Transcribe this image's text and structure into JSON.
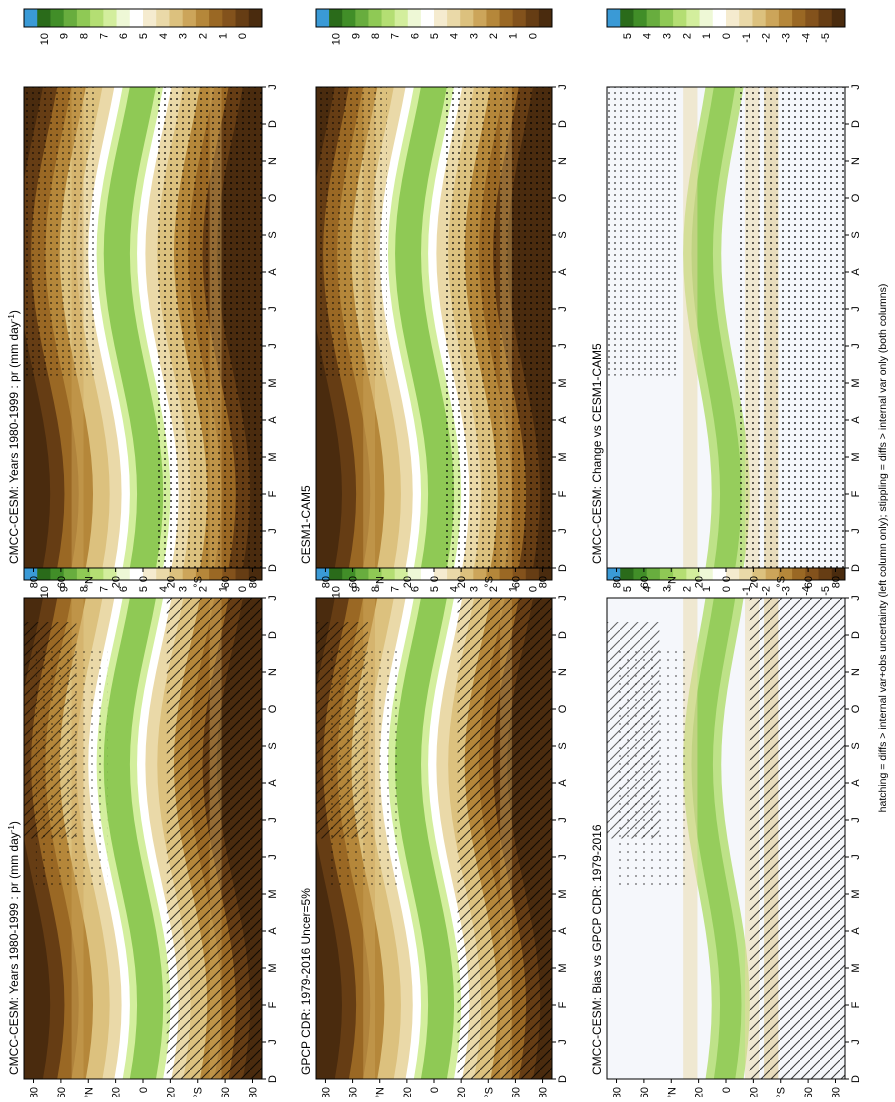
{
  "footnote": "hatching = diffs > internal var+obs uncertainty (left column only); stippling = diffs > internal var only (both columns)",
  "common": {
    "months": [
      "D",
      "J",
      "F",
      "M",
      "A",
      "M",
      "J",
      "J",
      "A",
      "S",
      "O",
      "N",
      "D",
      "J"
    ],
    "lat_ticks": [
      "80",
      "60",
      "°N",
      "20",
      "0",
      "20",
      "°S",
      "60",
      "80"
    ]
  },
  "palettes": {
    "abs": [
      "#f7f7f7",
      "#4a2b0e",
      "#663d14",
      "#83521c",
      "#9a6824",
      "#b5873a",
      "#cca55a",
      "#dcc17e",
      "#ead9a8",
      "#f5ebcf",
      "#ffffff",
      "#eef8d6",
      "#d3ee9d",
      "#b4de73",
      "#8fc955",
      "#68ad3e",
      "#418e28",
      "#2a6b1a",
      "#3a9ad6"
    ],
    "diff": [
      "#f7f7f7",
      "#4a2b0e",
      "#663d14",
      "#83521c",
      "#9a6824",
      "#b5873a",
      "#cca55a",
      "#dcc17e",
      "#ead9a8",
      "#f5ebcf",
      "#ffffff",
      "#eef8d6",
      "#d3ee9d",
      "#b4de73",
      "#8fc955",
      "#68ad3e",
      "#418e28",
      "#2a6b1a",
      "#3a9ad6"
    ]
  },
  "panels": [
    {
      "id": "tl",
      "title": "CMCC-CESM: Years 1980-1999 : pr (mm day",
      "title_sup": "-1",
      "title_end": ")",
      "kind": "abs",
      "hatch": true,
      "stipple": "sparse",
      "cb_labels": [
        "10",
        "9",
        "8",
        "7",
        "6",
        "5",
        "4",
        "3",
        "2",
        "1",
        "0"
      ]
    },
    {
      "id": "tr",
      "title": "CMCC-CESM: Years 1980-1999 : pr (mm day",
      "title_sup": "-1",
      "title_end": ")",
      "kind": "abs",
      "hatch": false,
      "stipple": "dense",
      "cb_labels": [
        "10",
        "9",
        "8",
        "7",
        "6",
        "5",
        "4",
        "3",
        "2",
        "1",
        "0"
      ]
    },
    {
      "id": "ml",
      "title": "GPCP CDR: 1979-2016 Uncer=5%",
      "title_sup": "",
      "title_end": "",
      "kind": "abs",
      "hatch": true,
      "stipple": "sparse",
      "cb_labels": [
        "10",
        "9",
        "8",
        "7",
        "6",
        "5",
        "4",
        "3",
        "2",
        "1",
        "0"
      ]
    },
    {
      "id": "mr",
      "title": "CESM1-CAM5",
      "title_sup": "",
      "title_end": "",
      "kind": "abs",
      "hatch": false,
      "stipple": "dense",
      "cb_labels": [
        "10",
        "9",
        "8",
        "7",
        "6",
        "5",
        "4",
        "3",
        "2",
        "1",
        "0"
      ]
    },
    {
      "id": "bl",
      "title": "CMCC-CESM: Bias vs GPCP CDR: 1979-2016",
      "title_sup": "",
      "title_end": "",
      "kind": "diff",
      "hatch": true,
      "stipple": "sparse",
      "cb_labels": [
        "5",
        "4",
        "3",
        "2",
        "1",
        "0",
        "-1",
        "-2",
        "-3",
        "-4",
        "-5"
      ]
    },
    {
      "id": "br",
      "title": "CMCC-CESM: Change vs CESM1-CAM5",
      "title_sup": "",
      "title_end": "",
      "kind": "diff",
      "hatch": false,
      "stipple": "dense",
      "cb_labels": [
        "5",
        "4",
        "3",
        "2",
        "1",
        "0",
        "-1",
        "-2",
        "-3",
        "-4",
        "-5"
      ]
    }
  ],
  "chart_data": {
    "type": "heatmap",
    "x_axis": {
      "label": "",
      "ticks": [
        "D",
        "J",
        "F",
        "M",
        "A",
        "M",
        "J",
        "J",
        "A",
        "S",
        "O",
        "N",
        "D",
        "J"
      ]
    },
    "y_axis": {
      "label": "",
      "ticks": [
        "80",
        "60",
        "°N",
        "20",
        "0",
        "20",
        "°S",
        "60",
        "80"
      ],
      "range": [
        -90,
        90
      ]
    },
    "series": [
      {
        "name": "CMCC-CESM: Years 1980-1999 : pr (mm day-1)",
        "colorbar": [
          0,
          1,
          2,
          3,
          4,
          5,
          6,
          7,
          8,
          9,
          10
        ]
      },
      {
        "name": "GPCP CDR: 1979-2016 Uncer=5%",
        "colorbar": [
          0,
          1,
          2,
          3,
          4,
          5,
          6,
          7,
          8,
          9,
          10
        ]
      },
      {
        "name": "CESM1-CAM5",
        "colorbar": [
          0,
          1,
          2,
          3,
          4,
          5,
          6,
          7,
          8,
          9,
          10
        ]
      },
      {
        "name": "CMCC-CESM: Bias vs GPCP CDR: 1979-2016",
        "colorbar": [
          -5,
          -4,
          -3,
          -2,
          -1,
          0,
          1,
          2,
          3,
          4,
          5
        ]
      },
      {
        "name": "CMCC-CESM: Change vs CESM1-CAM5",
        "colorbar": [
          -5,
          -4,
          -3,
          -2,
          -1,
          0,
          1,
          2,
          3,
          4,
          5
        ]
      }
    ]
  }
}
